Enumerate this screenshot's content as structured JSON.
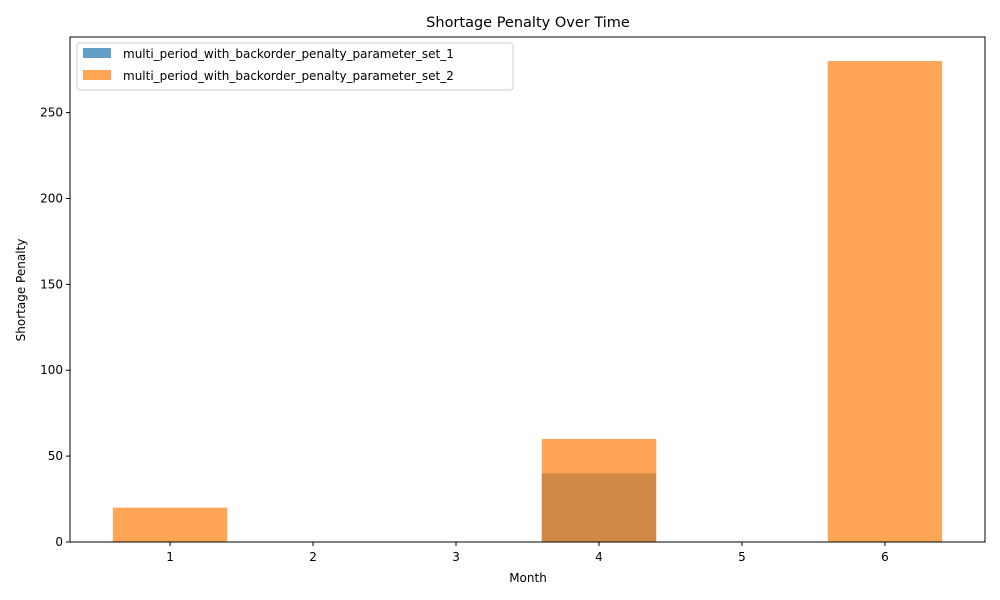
{
  "chart_data": {
    "type": "bar",
    "title": "Shortage Penalty Over Time",
    "xlabel": "Month",
    "ylabel": "Shortage Penalty",
    "categories": [
      "1",
      "2",
      "3",
      "4",
      "5",
      "6"
    ],
    "series": [
      {
        "name": "multi_period_with_backorder_penalty_parameter_set_1",
        "values": [
          0,
          0,
          0,
          40,
          0,
          0
        ],
        "color": "#1f77b4",
        "opacity": 0.7
      },
      {
        "name": "multi_period_with_backorder_penalty_parameter_set_2",
        "values": [
          20,
          0,
          0,
          60,
          0,
          280
        ],
        "color": "#ff7f0e",
        "opacity": 0.7
      }
    ],
    "ylim": [
      0,
      294
    ],
    "yticks": [
      0,
      50,
      100,
      150,
      200,
      250
    ],
    "grid": false,
    "legend_position": "top-left"
  }
}
